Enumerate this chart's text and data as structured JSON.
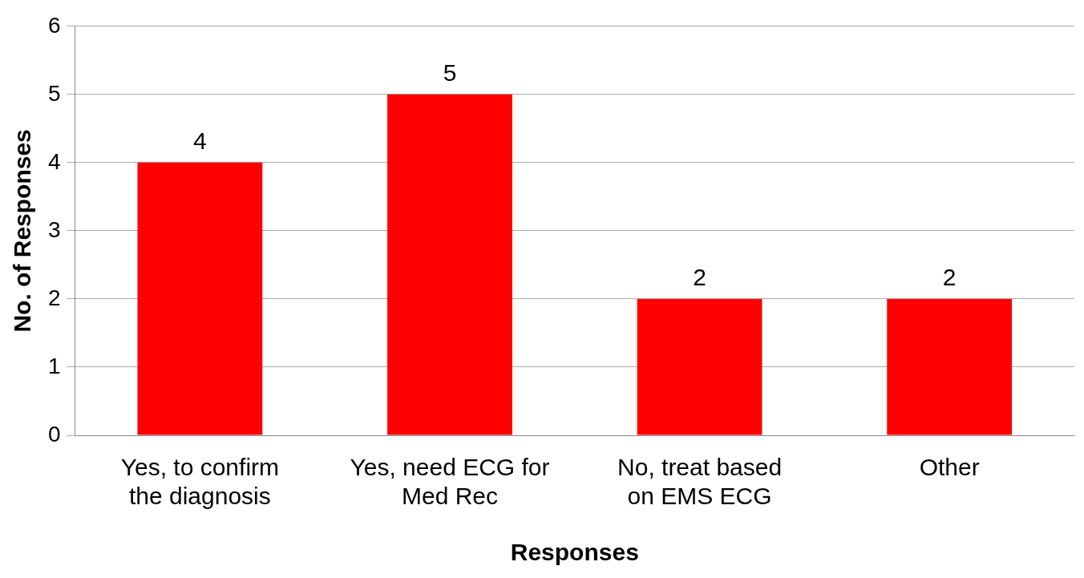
{
  "chart_data": {
    "type": "bar",
    "xlabel": "Responses",
    "ylabel": "No. of Responses",
    "categories": [
      "Yes, to confirm the diagnosis",
      "Yes, need ECG for Med Rec",
      "No, treat based on EMS ECG",
      "Other"
    ],
    "values": [
      4,
      5,
      2,
      2
    ],
    "color": "#ff0000",
    "ylim": [
      0,
      6
    ],
    "yticks": [
      0,
      1,
      2,
      3,
      4,
      5,
      6
    ],
    "grid": "y",
    "data_labels": true,
    "legend": false
  }
}
